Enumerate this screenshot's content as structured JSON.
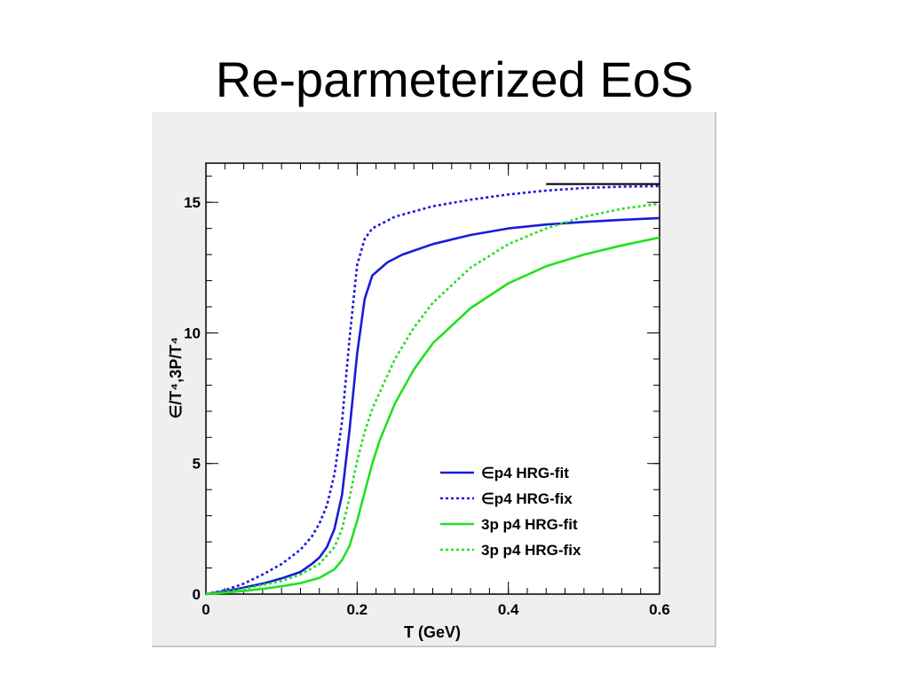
{
  "slide": {
    "title": "Re-parmeterized EoS"
  },
  "chart_data": {
    "type": "line",
    "title": "",
    "xlabel": "T (GeV)",
    "ylabel": "∈/T⁴,3P/T⁴",
    "xlim": [
      0,
      0.6
    ],
    "ylim": [
      0,
      16.5
    ],
    "x_ticks": [
      0,
      0.2,
      0.4,
      0.6
    ],
    "x_tick_labels": [
      "0",
      "0.2",
      "0.4",
      "0.6"
    ],
    "y_ticks": [
      0,
      5,
      10,
      15
    ],
    "y_tick_labels": [
      "0",
      "5",
      "10",
      "15"
    ],
    "grid": false,
    "legend_position": "bottom-right",
    "series": [
      {
        "name": "∈p4 HRG-fit",
        "color": "#1a1adc",
        "dash": "solid",
        "points": [
          [
            0,
            0
          ],
          [
            0.025,
            0.1
          ],
          [
            0.05,
            0.25
          ],
          [
            0.075,
            0.4
          ],
          [
            0.1,
            0.6
          ],
          [
            0.125,
            0.85
          ],
          [
            0.14,
            1.15
          ],
          [
            0.15,
            1.4
          ],
          [
            0.16,
            1.8
          ],
          [
            0.17,
            2.5
          ],
          [
            0.18,
            3.8
          ],
          [
            0.19,
            6.3
          ],
          [
            0.2,
            9.2
          ],
          [
            0.21,
            11.3
          ],
          [
            0.22,
            12.2
          ],
          [
            0.24,
            12.7
          ],
          [
            0.26,
            13.0
          ],
          [
            0.3,
            13.4
          ],
          [
            0.35,
            13.75
          ],
          [
            0.4,
            14.0
          ],
          [
            0.45,
            14.15
          ],
          [
            0.5,
            14.25
          ],
          [
            0.55,
            14.33
          ],
          [
            0.6,
            14.4
          ]
        ]
      },
      {
        "name": "∈p4 HRG-fix",
        "color": "#1a1adc",
        "dash": "dotted",
        "points": [
          [
            0,
            0
          ],
          [
            0.025,
            0.15
          ],
          [
            0.05,
            0.4
          ],
          [
            0.075,
            0.75
          ],
          [
            0.1,
            1.15
          ],
          [
            0.125,
            1.7
          ],
          [
            0.14,
            2.2
          ],
          [
            0.15,
            2.7
          ],
          [
            0.16,
            3.4
          ],
          [
            0.17,
            4.6
          ],
          [
            0.18,
            6.6
          ],
          [
            0.19,
            9.8
          ],
          [
            0.2,
            12.6
          ],
          [
            0.21,
            13.6
          ],
          [
            0.22,
            14.0
          ],
          [
            0.25,
            14.45
          ],
          [
            0.3,
            14.85
          ],
          [
            0.35,
            15.1
          ],
          [
            0.4,
            15.3
          ],
          [
            0.45,
            15.45
          ],
          [
            0.5,
            15.55
          ],
          [
            0.55,
            15.6
          ],
          [
            0.6,
            15.62
          ]
        ]
      },
      {
        "name": "3p p4 HRG-fit",
        "color": "#22e022",
        "dash": "solid",
        "points": [
          [
            0,
            0
          ],
          [
            0.025,
            0.05
          ],
          [
            0.05,
            0.12
          ],
          [
            0.075,
            0.2
          ],
          [
            0.1,
            0.3
          ],
          [
            0.125,
            0.42
          ],
          [
            0.15,
            0.62
          ],
          [
            0.17,
            0.95
          ],
          [
            0.18,
            1.3
          ],
          [
            0.19,
            1.85
          ],
          [
            0.2,
            2.8
          ],
          [
            0.21,
            3.9
          ],
          [
            0.22,
            5.0
          ],
          [
            0.23,
            5.9
          ],
          [
            0.25,
            7.3
          ],
          [
            0.275,
            8.6
          ],
          [
            0.3,
            9.6
          ],
          [
            0.35,
            10.95
          ],
          [
            0.4,
            11.9
          ],
          [
            0.45,
            12.55
          ],
          [
            0.5,
            13.0
          ],
          [
            0.55,
            13.35
          ],
          [
            0.6,
            13.65
          ]
        ]
      },
      {
        "name": "3p p4 HRG-fix",
        "color": "#22e022",
        "dash": "dotted",
        "points": [
          [
            0,
            0
          ],
          [
            0.025,
            0.08
          ],
          [
            0.05,
            0.2
          ],
          [
            0.075,
            0.35
          ],
          [
            0.1,
            0.5
          ],
          [
            0.125,
            0.75
          ],
          [
            0.15,
            1.15
          ],
          [
            0.17,
            1.8
          ],
          [
            0.18,
            2.5
          ],
          [
            0.19,
            3.7
          ],
          [
            0.2,
            5.1
          ],
          [
            0.21,
            6.2
          ],
          [
            0.22,
            7.1
          ],
          [
            0.25,
            9.0
          ],
          [
            0.275,
            10.2
          ],
          [
            0.3,
            11.15
          ],
          [
            0.35,
            12.5
          ],
          [
            0.4,
            13.4
          ],
          [
            0.45,
            14.0
          ],
          [
            0.5,
            14.45
          ],
          [
            0.55,
            14.75
          ],
          [
            0.6,
            14.95
          ]
        ]
      }
    ],
    "annotations": [
      {
        "type": "hline",
        "y": 15.7,
        "x_range": [
          0.45,
          0.6
        ],
        "color": "#000000"
      }
    ]
  }
}
